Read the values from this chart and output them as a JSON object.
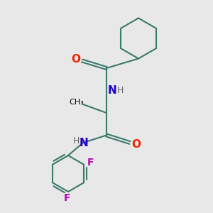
{
  "bg_color": "#e8e8e8",
  "bond_color": "#3a7a6a",
  "bond_width": 1.5,
  "O_color": "#ee2200",
  "N_color": "#2200cc",
  "F_color": "#bb00bb",
  "C_color": "#000000",
  "H_color": "#666666",
  "figsize": [
    3.0,
    3.0
  ],
  "dpi": 100,
  "xlim": [
    0,
    10
  ],
  "ylim": [
    0,
    10
  ]
}
